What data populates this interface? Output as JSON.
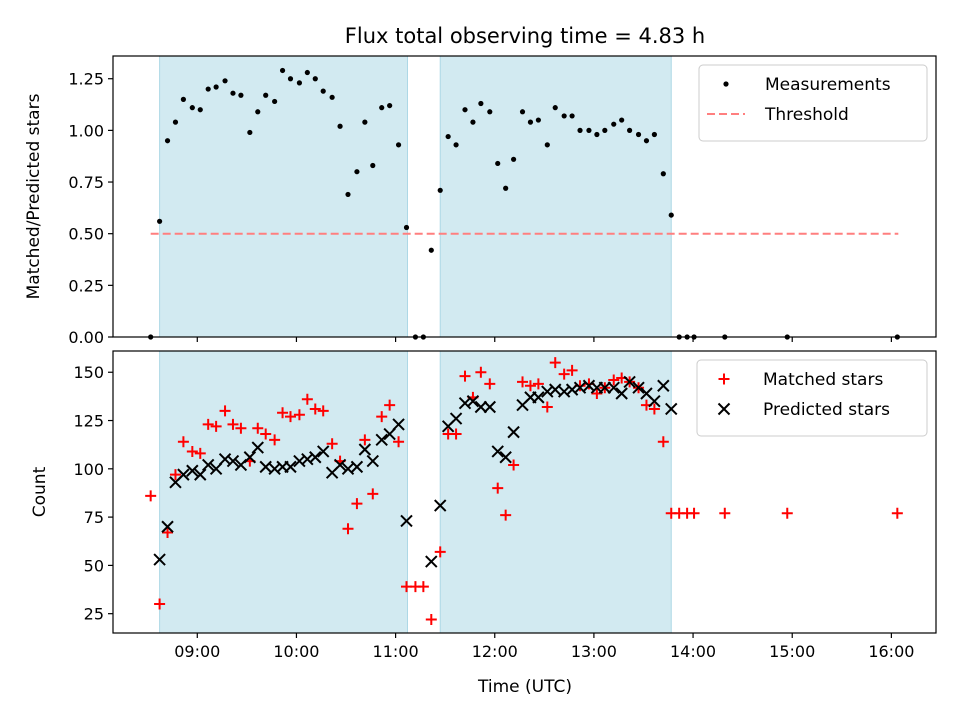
{
  "figure": {
    "title": "Flux total observing time = 4.83 h",
    "xlabel": "Time (UTC)"
  },
  "chart_data": [
    {
      "type": "scatter",
      "panel": "top",
      "title": "Flux total observing time = 4.83 h",
      "xlabel": "",
      "ylabel": "Matched/Predicted stars",
      "x_axis": "time (hours UTC)",
      "xlim": [
        8.15,
        16.45
      ],
      "ylim": [
        0.0,
        1.36
      ],
      "xticks": [
        {
          "value": 9,
          "label": "09:00"
        },
        {
          "value": 10,
          "label": "10:00"
        },
        {
          "value": 11,
          "label": "11:00"
        },
        {
          "value": 12,
          "label": "12:00"
        },
        {
          "value": 13,
          "label": "13:00"
        },
        {
          "value": 14,
          "label": "14:00"
        },
        {
          "value": 15,
          "label": "15:00"
        },
        {
          "value": 16,
          "label": "16:00"
        }
      ],
      "xtick_labels_shown": false,
      "yticks": [
        {
          "value": 0.0,
          "label": "0.00"
        },
        {
          "value": 0.25,
          "label": "0.25"
        },
        {
          "value": 0.5,
          "label": "0.50"
        },
        {
          "value": 0.75,
          "label": "0.75"
        },
        {
          "value": 1.0,
          "label": "1.00"
        },
        {
          "value": 1.25,
          "label": "1.25"
        }
      ],
      "shaded_intervals": [
        [
          8.62,
          11.12
        ],
        [
          11.45,
          13.78
        ]
      ],
      "shade_color": "#add8e6",
      "legend": {
        "placement": "top-right",
        "entries": [
          {
            "label": "Measurements",
            "marker": "dot",
            "color": "#000000"
          },
          {
            "label": "Threshold",
            "marker": "dashed-line",
            "color": "#ff7f7f"
          }
        ]
      },
      "threshold": {
        "name": "Threshold",
        "y": 0.5,
        "x_range": [
          8.53,
          16.07
        ],
        "color": "#ff7f7f",
        "style": "dashed"
      },
      "series": [
        {
          "name": "Measurements",
          "marker": "dot",
          "color": "#000000",
          "points": [
            [
              8.53,
              0.0
            ],
            [
              8.62,
              0.56
            ],
            [
              8.7,
              0.95
            ],
            [
              8.78,
              1.04
            ],
            [
              8.86,
              1.15
            ],
            [
              8.95,
              1.11
            ],
            [
              9.03,
              1.1
            ],
            [
              9.11,
              1.2
            ],
            [
              9.19,
              1.21
            ],
            [
              9.28,
              1.24
            ],
            [
              9.36,
              1.18
            ],
            [
              9.44,
              1.17
            ],
            [
              9.53,
              0.99
            ],
            [
              9.61,
              1.09
            ],
            [
              9.69,
              1.17
            ],
            [
              9.78,
              1.14
            ],
            [
              9.86,
              1.29
            ],
            [
              9.94,
              1.25
            ],
            [
              10.03,
              1.23
            ],
            [
              10.11,
              1.28
            ],
            [
              10.19,
              1.25
            ],
            [
              10.27,
              1.19
            ],
            [
              10.36,
              1.16
            ],
            [
              10.44,
              1.02
            ],
            [
              10.52,
              0.69
            ],
            [
              10.61,
              0.8
            ],
            [
              10.69,
              1.04
            ],
            [
              10.77,
              0.83
            ],
            [
              10.86,
              1.11
            ],
            [
              10.94,
              1.12
            ],
            [
              11.03,
              0.93
            ],
            [
              11.11,
              0.53
            ],
            [
              11.2,
              0.0
            ],
            [
              11.28,
              0.0
            ],
            [
              11.36,
              0.42
            ],
            [
              11.45,
              0.71
            ],
            [
              11.53,
              0.97
            ],
            [
              11.61,
              0.93
            ],
            [
              11.7,
              1.1
            ],
            [
              11.78,
              1.04
            ],
            [
              11.86,
              1.13
            ],
            [
              11.95,
              1.09
            ],
            [
              12.03,
              0.84
            ],
            [
              12.11,
              0.72
            ],
            [
              12.19,
              0.86
            ],
            [
              12.28,
              1.09
            ],
            [
              12.36,
              1.04
            ],
            [
              12.44,
              1.05
            ],
            [
              12.53,
              0.93
            ],
            [
              12.61,
              1.11
            ],
            [
              12.7,
              1.07
            ],
            [
              12.78,
              1.07
            ],
            [
              12.86,
              1.0
            ],
            [
              12.95,
              1.0
            ],
            [
              13.03,
              0.98
            ],
            [
              13.11,
              1.0
            ],
            [
              13.2,
              1.03
            ],
            [
              13.28,
              1.05
            ],
            [
              13.36,
              1.0
            ],
            [
              13.45,
              0.98
            ],
            [
              13.53,
              0.95
            ],
            [
              13.61,
              0.98
            ],
            [
              13.7,
              0.79
            ],
            [
              13.78,
              0.59
            ],
            [
              13.86,
              0.0
            ],
            [
              13.94,
              0.0
            ],
            [
              14.01,
              0.0
            ],
            [
              14.32,
              0.0
            ],
            [
              14.95,
              0.0
            ],
            [
              16.06,
              0.0
            ]
          ]
        }
      ]
    },
    {
      "type": "scatter",
      "panel": "bottom",
      "title": "",
      "xlabel": "Time (UTC)",
      "ylabel": "Count",
      "x_axis": "time (hours UTC)",
      "xlim": [
        8.15,
        16.45
      ],
      "ylim": [
        15,
        161
      ],
      "xticks": [
        {
          "value": 9,
          "label": "09:00"
        },
        {
          "value": 10,
          "label": "10:00"
        },
        {
          "value": 11,
          "label": "11:00"
        },
        {
          "value": 12,
          "label": "12:00"
        },
        {
          "value": 13,
          "label": "13:00"
        },
        {
          "value": 14,
          "label": "14:00"
        },
        {
          "value": 15,
          "label": "15:00"
        },
        {
          "value": 16,
          "label": "16:00"
        }
      ],
      "xtick_labels_shown": true,
      "yticks": [
        {
          "value": 25,
          "label": "25"
        },
        {
          "value": 50,
          "label": "50"
        },
        {
          "value": 75,
          "label": "75"
        },
        {
          "value": 100,
          "label": "100"
        },
        {
          "value": 125,
          "label": "125"
        },
        {
          "value": 150,
          "label": "150"
        }
      ],
      "shaded_intervals": [
        [
          8.62,
          11.12
        ],
        [
          11.45,
          13.78
        ]
      ],
      "shade_color": "#add8e6",
      "legend": {
        "placement": "top-right",
        "entries": [
          {
            "label": "Matched stars",
            "marker": "plus",
            "color": "#ff0000"
          },
          {
            "label": "Predicted stars",
            "marker": "cross",
            "color": "#000000"
          }
        ]
      },
      "series": [
        {
          "name": "Matched stars",
          "marker": "plus",
          "color": "#ff0000",
          "points": [
            [
              8.53,
              86
            ],
            [
              8.62,
              30
            ],
            [
              8.7,
              67
            ],
            [
              8.78,
              97
            ],
            [
              8.86,
              114
            ],
            [
              8.95,
              109
            ],
            [
              9.03,
              108
            ],
            [
              9.11,
              123
            ],
            [
              9.19,
              122
            ],
            [
              9.28,
              130
            ],
            [
              9.36,
              123
            ],
            [
              9.44,
              121
            ],
            [
              9.53,
              104
            ],
            [
              9.61,
              121
            ],
            [
              9.69,
              118
            ],
            [
              9.78,
              115
            ],
            [
              9.86,
              129
            ],
            [
              9.94,
              127
            ],
            [
              10.03,
              128
            ],
            [
              10.11,
              136
            ],
            [
              10.19,
              131
            ],
            [
              10.27,
              130
            ],
            [
              10.36,
              113
            ],
            [
              10.44,
              104
            ],
            [
              10.52,
              69
            ],
            [
              10.61,
              82
            ],
            [
              10.69,
              115
            ],
            [
              10.77,
              87
            ],
            [
              10.86,
              127
            ],
            [
              10.94,
              133
            ],
            [
              11.03,
              114
            ],
            [
              11.11,
              39
            ],
            [
              11.2,
              39
            ],
            [
              11.28,
              39
            ],
            [
              11.36,
              22
            ],
            [
              11.45,
              57
            ],
            [
              11.53,
              118
            ],
            [
              11.61,
              118
            ],
            [
              11.7,
              148
            ],
            [
              11.78,
              137
            ],
            [
              11.86,
              150
            ],
            [
              11.95,
              144
            ],
            [
              12.03,
              90
            ],
            [
              12.11,
              76
            ],
            [
              12.19,
              102
            ],
            [
              12.28,
              145
            ],
            [
              12.36,
              143
            ],
            [
              12.44,
              144
            ],
            [
              12.53,
              132
            ],
            [
              12.61,
              155
            ],
            [
              12.7,
              149
            ],
            [
              12.78,
              151
            ],
            [
              12.86,
              143
            ],
            [
              12.95,
              144
            ],
            [
              13.03,
              139
            ],
            [
              13.11,
              142
            ],
            [
              13.2,
              146
            ],
            [
              13.28,
              147
            ],
            [
              13.36,
              145
            ],
            [
              13.45,
              142
            ],
            [
              13.53,
              133
            ],
            [
              13.61,
              131
            ],
            [
              13.7,
              114
            ],
            [
              13.78,
              77
            ],
            [
              13.86,
              77
            ],
            [
              13.94,
              77
            ],
            [
              14.01,
              77
            ],
            [
              14.32,
              77
            ],
            [
              14.95,
              77
            ],
            [
              16.06,
              77
            ]
          ]
        },
        {
          "name": "Predicted stars",
          "marker": "cross",
          "color": "#000000",
          "points": [
            [
              8.62,
              53
            ],
            [
              8.7,
              70
            ],
            [
              8.78,
              93
            ],
            [
              8.86,
              97
            ],
            [
              8.95,
              99
            ],
            [
              9.03,
              97
            ],
            [
              9.11,
              102
            ],
            [
              9.19,
              100
            ],
            [
              9.28,
              105
            ],
            [
              9.36,
              104
            ],
            [
              9.44,
              102
            ],
            [
              9.53,
              106
            ],
            [
              9.61,
              111
            ],
            [
              9.69,
              101
            ],
            [
              9.78,
              100
            ],
            [
              9.86,
              101
            ],
            [
              9.94,
              101
            ],
            [
              10.03,
              104
            ],
            [
              10.11,
              105
            ],
            [
              10.19,
              106
            ],
            [
              10.27,
              109
            ],
            [
              10.36,
              98
            ],
            [
              10.44,
              102
            ],
            [
              10.52,
              100
            ],
            [
              10.61,
              101
            ],
            [
              10.69,
              110
            ],
            [
              10.77,
              104
            ],
            [
              10.86,
              115
            ],
            [
              10.94,
              118
            ],
            [
              11.03,
              123
            ],
            [
              11.11,
              73
            ],
            [
              11.36,
              52
            ],
            [
              11.45,
              81
            ],
            [
              11.53,
              122
            ],
            [
              11.61,
              126
            ],
            [
              11.7,
              134
            ],
            [
              11.78,
              135
            ],
            [
              11.86,
              132
            ],
            [
              11.95,
              132
            ],
            [
              12.03,
              109
            ],
            [
              12.11,
              106
            ],
            [
              12.19,
              119
            ],
            [
              12.28,
              133
            ],
            [
              12.36,
              137
            ],
            [
              12.44,
              137
            ],
            [
              12.53,
              140
            ],
            [
              12.61,
              141
            ],
            [
              12.7,
              140
            ],
            [
              12.78,
              141
            ],
            [
              12.86,
              142
            ],
            [
              12.95,
              143
            ],
            [
              13.03,
              142
            ],
            [
              13.11,
              142
            ],
            [
              13.2,
              142
            ],
            [
              13.28,
              139
            ],
            [
              13.36,
              145
            ],
            [
              13.45,
              142
            ],
            [
              13.53,
              139
            ],
            [
              13.61,
              135
            ],
            [
              13.7,
              143
            ],
            [
              13.78,
              131
            ]
          ]
        }
      ]
    }
  ]
}
